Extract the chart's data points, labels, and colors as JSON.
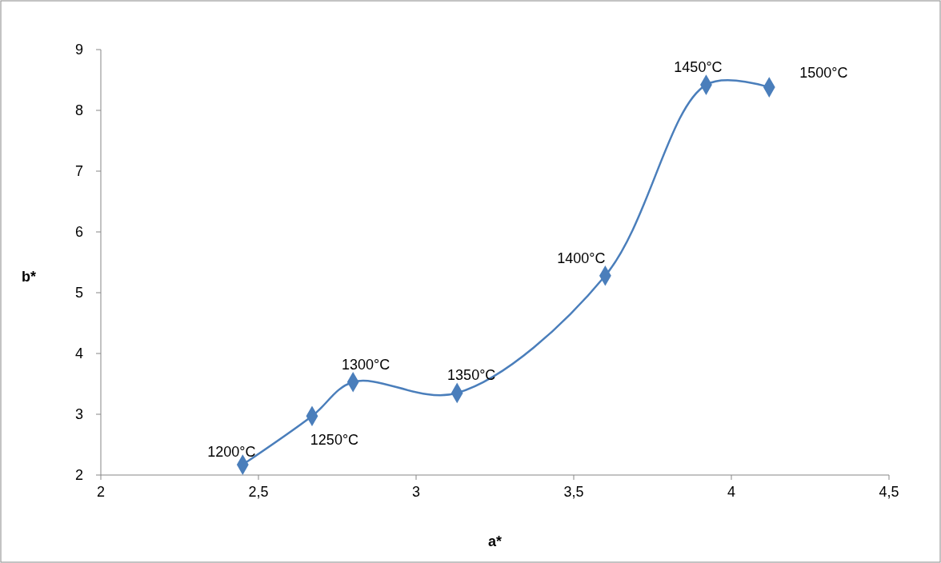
{
  "chart_data": {
    "type": "line",
    "xlabel": "a*",
    "ylabel": "b*",
    "x": [
      2.45,
      2.67,
      2.8,
      3.13,
      3.6,
      3.92,
      4.12
    ],
    "series": [
      {
        "color": "#4a7ebb",
        "values": [
          2.17,
          2.97,
          3.53,
          3.35,
          5.28,
          8.42,
          8.38
        ]
      }
    ],
    "xlim": [
      2,
      4.5
    ],
    "xticks": [
      2,
      {
        "value": 2.5,
        "label": "2,5"
      },
      3,
      {
        "value": 3.5,
        "label": "3,5"
      },
      4,
      {
        "value": 4.5,
        "label": "4,5"
      }
    ],
    "ylim": [
      2,
      9
    ],
    "yticks": [
      2,
      3,
      4,
      5,
      6,
      7,
      8,
      9
    ],
    "marker": "diamond",
    "line_style": "solid",
    "grid": false,
    "annotations": [
      {
        "text": "1200°C",
        "x": 2.45,
        "y": 2.17
      },
      {
        "text": "1250°C",
        "x": 2.67,
        "y": 2.97
      },
      {
        "text": "1300°C",
        "x": 2.8,
        "y": 3.53
      },
      {
        "text": "1350°C",
        "x": 3.13,
        "y": 3.35
      },
      {
        "text": "1400°C",
        "x": 3.6,
        "y": 5.28
      },
      {
        "text": "1450°C",
        "x": 3.92,
        "y": 8.42
      },
      {
        "text": "1500°C",
        "x": 4.12,
        "y": 8.38
      }
    ]
  }
}
